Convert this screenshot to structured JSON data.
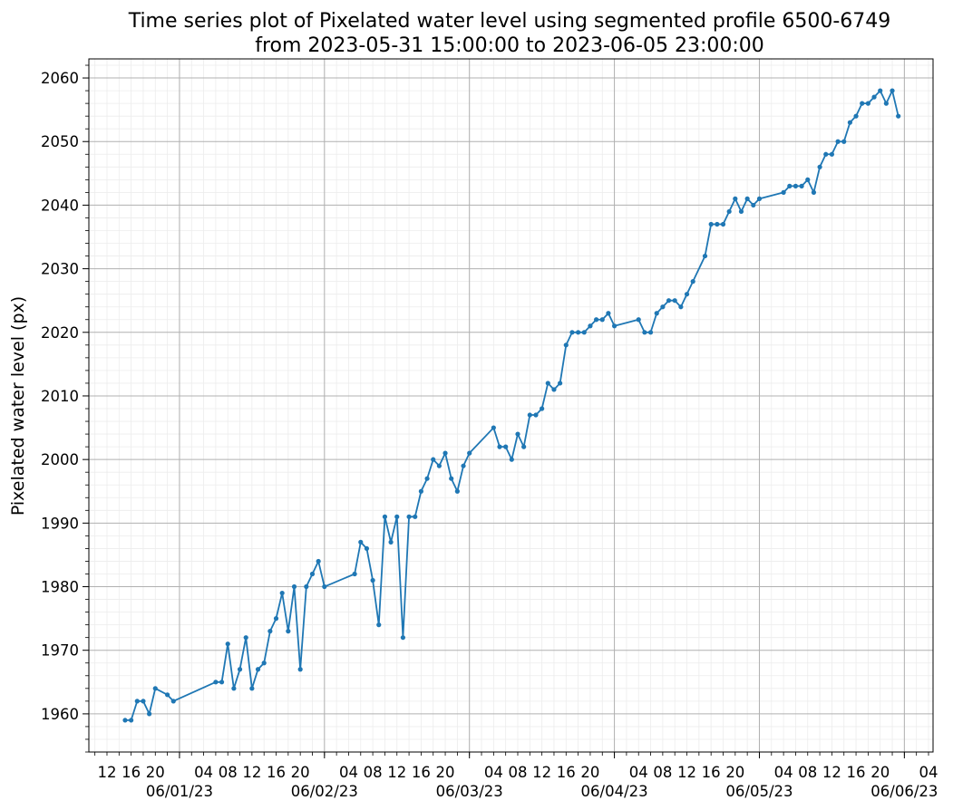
{
  "chart_data": {
    "type": "line",
    "title_lines": [
      "Time series plot of Pixelated water level using segmented profile 6500-6749",
      "from 2023-05-31 15:00:00 to 2023-06-05 23:00:00"
    ],
    "xlabel": "",
    "ylabel": "Pixelated water level (px)",
    "xlim": [
      "2023-05-31 09:00",
      "2023-06-06 04:45"
    ],
    "ylim": [
      1954,
      2063
    ],
    "y_major_ticks": [
      1960,
      1970,
      1980,
      1990,
      2000,
      2010,
      2020,
      2030,
      2040,
      2050,
      2060
    ],
    "x_hour_tick_labels": [
      {
        "t": "2023-05-31 12:00",
        "label": "12"
      },
      {
        "t": "2023-05-31 16:00",
        "label": "16"
      },
      {
        "t": "2023-05-31 20:00",
        "label": "20"
      },
      {
        "t": "2023-06-01 04:00",
        "label": "04"
      },
      {
        "t": "2023-06-01 08:00",
        "label": "08"
      },
      {
        "t": "2023-06-01 12:00",
        "label": "12"
      },
      {
        "t": "2023-06-01 16:00",
        "label": "16"
      },
      {
        "t": "2023-06-01 20:00",
        "label": "20"
      },
      {
        "t": "2023-06-02 04:00",
        "label": "04"
      },
      {
        "t": "2023-06-02 08:00",
        "label": "08"
      },
      {
        "t": "2023-06-02 12:00",
        "label": "12"
      },
      {
        "t": "2023-06-02 16:00",
        "label": "16"
      },
      {
        "t": "2023-06-02 20:00",
        "label": "20"
      },
      {
        "t": "2023-06-03 04:00",
        "label": "04"
      },
      {
        "t": "2023-06-03 08:00",
        "label": "08"
      },
      {
        "t": "2023-06-03 12:00",
        "label": "12"
      },
      {
        "t": "2023-06-03 16:00",
        "label": "16"
      },
      {
        "t": "2023-06-03 20:00",
        "label": "20"
      },
      {
        "t": "2023-06-04 04:00",
        "label": "04"
      },
      {
        "t": "2023-06-04 08:00",
        "label": "08"
      },
      {
        "t": "2023-06-04 12:00",
        "label": "12"
      },
      {
        "t": "2023-06-04 16:00",
        "label": "16"
      },
      {
        "t": "2023-06-04 20:00",
        "label": "20"
      },
      {
        "t": "2023-06-05 04:00",
        "label": "04"
      },
      {
        "t": "2023-06-05 08:00",
        "label": "08"
      },
      {
        "t": "2023-06-05 12:00",
        "label": "12"
      },
      {
        "t": "2023-06-05 16:00",
        "label": "16"
      },
      {
        "t": "2023-06-05 20:00",
        "label": "20"
      },
      {
        "t": "2023-06-06 04:00",
        "label": "04"
      }
    ],
    "x_day_tick_labels": [
      {
        "t": "2023-06-01 00:00",
        "label": "06/01/23"
      },
      {
        "t": "2023-06-02 00:00",
        "label": "06/02/23"
      },
      {
        "t": "2023-06-03 00:00",
        "label": "06/03/23"
      },
      {
        "t": "2023-06-04 00:00",
        "label": "06/04/23"
      },
      {
        "t": "2023-06-05 00:00",
        "label": "06/05/23"
      },
      {
        "t": "2023-06-06 00:00",
        "label": "06/06/23"
      }
    ],
    "grid": true,
    "series": [
      {
        "color": "#1f77b4",
        "marker": "dot",
        "points": [
          {
            "t": "2023-05-31 15:00",
            "y": 1959
          },
          {
            "t": "2023-05-31 16:00",
            "y": 1959
          },
          {
            "t": "2023-05-31 17:00",
            "y": 1962
          },
          {
            "t": "2023-05-31 18:00",
            "y": 1962
          },
          {
            "t": "2023-05-31 19:00",
            "y": 1960
          },
          {
            "t": "2023-05-31 20:00",
            "y": 1964
          },
          {
            "t": "2023-05-31 22:00",
            "y": 1963
          },
          {
            "t": "2023-05-31 23:00",
            "y": 1962
          },
          {
            "t": "2023-06-01 06:00",
            "y": 1965
          },
          {
            "t": "2023-06-01 07:00",
            "y": 1965
          },
          {
            "t": "2023-06-01 08:00",
            "y": 1971
          },
          {
            "t": "2023-06-01 09:00",
            "y": 1964
          },
          {
            "t": "2023-06-01 10:00",
            "y": 1967
          },
          {
            "t": "2023-06-01 11:00",
            "y": 1972
          },
          {
            "t": "2023-06-01 12:00",
            "y": 1964
          },
          {
            "t": "2023-06-01 13:00",
            "y": 1967
          },
          {
            "t": "2023-06-01 14:00",
            "y": 1968
          },
          {
            "t": "2023-06-01 15:00",
            "y": 1973
          },
          {
            "t": "2023-06-01 16:00",
            "y": 1975
          },
          {
            "t": "2023-06-01 17:00",
            "y": 1979
          },
          {
            "t": "2023-06-01 18:00",
            "y": 1973
          },
          {
            "t": "2023-06-01 19:00",
            "y": 1980
          },
          {
            "t": "2023-06-01 20:00",
            "y": 1967
          },
          {
            "t": "2023-06-01 21:00",
            "y": 1980
          },
          {
            "t": "2023-06-01 22:00",
            "y": 1982
          },
          {
            "t": "2023-06-01 23:00",
            "y": 1984
          },
          {
            "t": "2023-06-02 00:00",
            "y": 1980
          },
          {
            "t": "2023-06-02 05:00",
            "y": 1982
          },
          {
            "t": "2023-06-02 06:00",
            "y": 1987
          },
          {
            "t": "2023-06-02 07:00",
            "y": 1986
          },
          {
            "t": "2023-06-02 08:00",
            "y": 1981
          },
          {
            "t": "2023-06-02 09:00",
            "y": 1974
          },
          {
            "t": "2023-06-02 10:00",
            "y": 1991
          },
          {
            "t": "2023-06-02 11:00",
            "y": 1987
          },
          {
            "t": "2023-06-02 12:00",
            "y": 1991
          },
          {
            "t": "2023-06-02 13:00",
            "y": 1972
          },
          {
            "t": "2023-06-02 14:00",
            "y": 1991
          },
          {
            "t": "2023-06-02 15:00",
            "y": 1991
          },
          {
            "t": "2023-06-02 16:00",
            "y": 1995
          },
          {
            "t": "2023-06-02 17:00",
            "y": 1997
          },
          {
            "t": "2023-06-02 18:00",
            "y": 2000
          },
          {
            "t": "2023-06-02 19:00",
            "y": 1999
          },
          {
            "t": "2023-06-02 20:00",
            "y": 2001
          },
          {
            "t": "2023-06-02 21:00",
            "y": 1997
          },
          {
            "t": "2023-06-02 22:00",
            "y": 1995
          },
          {
            "t": "2023-06-02 23:00",
            "y": 1999
          },
          {
            "t": "2023-06-03 00:00",
            "y": 2001
          },
          {
            "t": "2023-06-03 04:00",
            "y": 2005
          },
          {
            "t": "2023-06-03 05:00",
            "y": 2002
          },
          {
            "t": "2023-06-03 06:00",
            "y": 2002
          },
          {
            "t": "2023-06-03 07:00",
            "y": 2000
          },
          {
            "t": "2023-06-03 08:00",
            "y": 2004
          },
          {
            "t": "2023-06-03 09:00",
            "y": 2002
          },
          {
            "t": "2023-06-03 10:00",
            "y": 2007
          },
          {
            "t": "2023-06-03 11:00",
            "y": 2007
          },
          {
            "t": "2023-06-03 12:00",
            "y": 2008
          },
          {
            "t": "2023-06-03 13:00",
            "y": 2012
          },
          {
            "t": "2023-06-03 14:00",
            "y": 2011
          },
          {
            "t": "2023-06-03 15:00",
            "y": 2012
          },
          {
            "t": "2023-06-03 16:00",
            "y": 2018
          },
          {
            "t": "2023-06-03 17:00",
            "y": 2020
          },
          {
            "t": "2023-06-03 18:00",
            "y": 2020
          },
          {
            "t": "2023-06-03 19:00",
            "y": 2020
          },
          {
            "t": "2023-06-03 20:00",
            "y": 2021
          },
          {
            "t": "2023-06-03 21:00",
            "y": 2022
          },
          {
            "t": "2023-06-03 22:00",
            "y": 2022
          },
          {
            "t": "2023-06-03 23:00",
            "y": 2023
          },
          {
            "t": "2023-06-04 00:00",
            "y": 2021
          },
          {
            "t": "2023-06-04 04:00",
            "y": 2022
          },
          {
            "t": "2023-06-04 05:00",
            "y": 2020
          },
          {
            "t": "2023-06-04 06:00",
            "y": 2020
          },
          {
            "t": "2023-06-04 07:00",
            "y": 2023
          },
          {
            "t": "2023-06-04 08:00",
            "y": 2024
          },
          {
            "t": "2023-06-04 09:00",
            "y": 2025
          },
          {
            "t": "2023-06-04 10:00",
            "y": 2025
          },
          {
            "t": "2023-06-04 11:00",
            "y": 2024
          },
          {
            "t": "2023-06-04 12:00",
            "y": 2026
          },
          {
            "t": "2023-06-04 13:00",
            "y": 2028
          },
          {
            "t": "2023-06-04 15:00",
            "y": 2032
          },
          {
            "t": "2023-06-04 16:00",
            "y": 2037
          },
          {
            "t": "2023-06-04 17:00",
            "y": 2037
          },
          {
            "t": "2023-06-04 18:00",
            "y": 2037
          },
          {
            "t": "2023-06-04 19:00",
            "y": 2039
          },
          {
            "t": "2023-06-04 20:00",
            "y": 2041
          },
          {
            "t": "2023-06-04 21:00",
            "y": 2039
          },
          {
            "t": "2023-06-04 22:00",
            "y": 2041
          },
          {
            "t": "2023-06-04 23:00",
            "y": 2040
          },
          {
            "t": "2023-06-05 00:00",
            "y": 2041
          },
          {
            "t": "2023-06-05 04:00",
            "y": 2042
          },
          {
            "t": "2023-06-05 05:00",
            "y": 2043
          },
          {
            "t": "2023-06-05 06:00",
            "y": 2043
          },
          {
            "t": "2023-06-05 07:00",
            "y": 2043
          },
          {
            "t": "2023-06-05 08:00",
            "y": 2044
          },
          {
            "t": "2023-06-05 09:00",
            "y": 2042
          },
          {
            "t": "2023-06-05 10:00",
            "y": 2046
          },
          {
            "t": "2023-06-05 11:00",
            "y": 2048
          },
          {
            "t": "2023-06-05 12:00",
            "y": 2048
          },
          {
            "t": "2023-06-05 13:00",
            "y": 2050
          },
          {
            "t": "2023-06-05 14:00",
            "y": 2050
          },
          {
            "t": "2023-06-05 15:00",
            "y": 2053
          },
          {
            "t": "2023-06-05 16:00",
            "y": 2054
          },
          {
            "t": "2023-06-05 17:00",
            "y": 2056
          },
          {
            "t": "2023-06-05 18:00",
            "y": 2056
          },
          {
            "t": "2023-06-05 19:00",
            "y": 2057
          },
          {
            "t": "2023-06-05 20:00",
            "y": 2058
          },
          {
            "t": "2023-06-05 21:00",
            "y": 2056
          },
          {
            "t": "2023-06-05 22:00",
            "y": 2058
          },
          {
            "t": "2023-06-05 23:00",
            "y": 2054
          }
        ]
      }
    ]
  }
}
